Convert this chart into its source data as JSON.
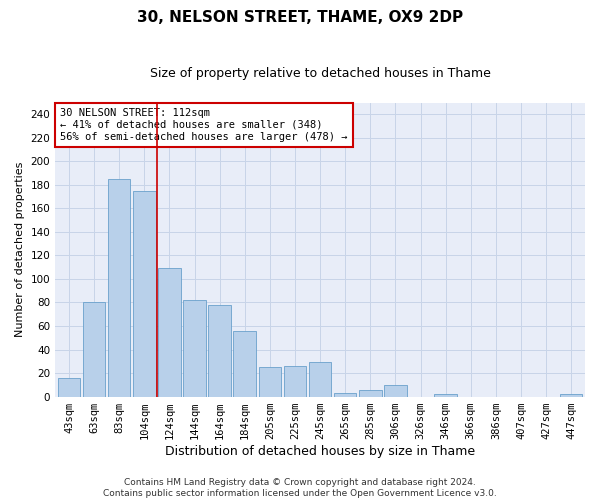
{
  "title1": "30, NELSON STREET, THAME, OX9 2DP",
  "title2": "Size of property relative to detached houses in Thame",
  "xlabel": "Distribution of detached houses by size in Thame",
  "ylabel": "Number of detached properties",
  "categories": [
    "43sqm",
    "63sqm",
    "83sqm",
    "104sqm",
    "124sqm",
    "144sqm",
    "164sqm",
    "184sqm",
    "205sqm",
    "225sqm",
    "245sqm",
    "265sqm",
    "285sqm",
    "306sqm",
    "326sqm",
    "346sqm",
    "366sqm",
    "386sqm",
    "407sqm",
    "427sqm",
    "447sqm"
  ],
  "values": [
    16,
    80,
    185,
    175,
    109,
    82,
    78,
    56,
    25,
    26,
    29,
    3,
    6,
    10,
    0,
    2,
    0,
    0,
    0,
    0,
    2
  ],
  "bar_color": "#b8d0ea",
  "bar_edge_color": "#6aa0cc",
  "vline_x_index": 3.5,
  "vline_color": "#cc0000",
  "annotation_text": "30 NELSON STREET: 112sqm\n← 41% of detached houses are smaller (348)\n56% of semi-detached houses are larger (478) →",
  "annotation_box_facecolor": "#ffffff",
  "annotation_box_edgecolor": "#cc0000",
  "ylim": [
    0,
    250
  ],
  "yticks": [
    0,
    20,
    40,
    60,
    80,
    100,
    120,
    140,
    160,
    180,
    200,
    220,
    240
  ],
  "grid_color": "#c8d4e8",
  "background_color": "#e8edf8",
  "footer": "Contains HM Land Registry data © Crown copyright and database right 2024.\nContains public sector information licensed under the Open Government Licence v3.0.",
  "title1_fontsize": 11,
  "title2_fontsize": 9,
  "xlabel_fontsize": 9,
  "ylabel_fontsize": 8,
  "tick_fontsize": 7.5,
  "annot_fontsize": 7.5,
  "footer_fontsize": 6.5
}
